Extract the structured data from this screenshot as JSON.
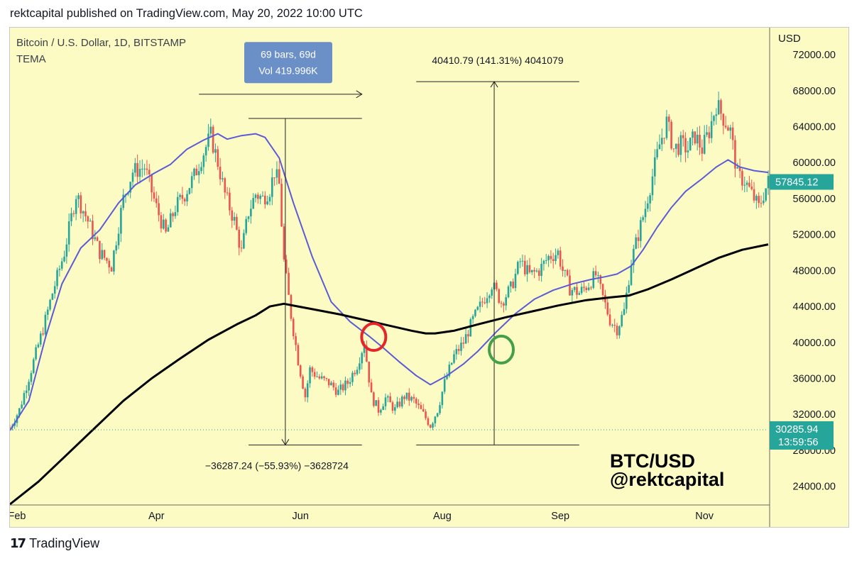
{
  "header": {
    "text": "rektcapital published on TradingView.com, May 20, 2022 10:00 UTC"
  },
  "footer": {
    "brand": "TradingView",
    "logo_glyph": "17"
  },
  "colors": {
    "background": "#fdfbc4",
    "up": "#26a69a",
    "down": "#ef5350",
    "ema_blue": "#5b5bd6",
    "ema_black": "#000000",
    "price_badge": "#26a69a",
    "measure_box": "#6b8fc7",
    "red_circle": "#e5252b",
    "green_circle": "#43a047"
  },
  "chart_data": {
    "type": "candlestick",
    "symbol_label": "Bitcoin / U.S. Dollar, 1D, BITSTAMP",
    "indicator_label": "TEMA",
    "currency_label": "USD",
    "y_ticks": [
      "72000.00",
      "68000.00",
      "64000.00",
      "60000.00",
      "56000.00",
      "52000.00",
      "48000.00",
      "44000.00",
      "40000.00",
      "36000.00",
      "32000.00",
      "28000.00",
      "24000.00"
    ],
    "y_tick_values": [
      72000,
      68000,
      64000,
      60000,
      56000,
      52000,
      48000,
      44000,
      40000,
      36000,
      32000,
      28000,
      24000
    ],
    "x_ticks": [
      "Feb",
      "Apr",
      "Jun",
      "Aug",
      "Sep",
      "Nov"
    ],
    "x_tick_days": [
      3,
      62,
      123,
      183,
      233,
      294
    ],
    "x_range_days": [
      0,
      321
    ],
    "y_range": [
      22000,
      75000
    ],
    "last_price": {
      "label": "57845.12",
      "value": 57845.12
    },
    "marker_price": {
      "label": "30285.94",
      "value": 30285.94,
      "countdown": "13:59:56"
    },
    "price_anchors": [
      {
        "day": 0,
        "price": 30500
      },
      {
        "day": 4,
        "price": 32500
      },
      {
        "day": 9,
        "price": 37000
      },
      {
        "day": 14,
        "price": 41500
      },
      {
        "day": 18,
        "price": 45500
      },
      {
        "day": 23,
        "price": 50000
      },
      {
        "day": 28,
        "price": 56500
      },
      {
        "day": 33,
        "price": 53500
      },
      {
        "day": 38,
        "price": 50000
      },
      {
        "day": 43,
        "price": 48500
      },
      {
        "day": 48,
        "price": 56000
      },
      {
        "day": 52,
        "price": 59000
      },
      {
        "day": 57,
        "price": 59500
      },
      {
        "day": 62,
        "price": 55000
      },
      {
        "day": 66,
        "price": 52000
      },
      {
        "day": 70,
        "price": 55000
      },
      {
        "day": 74,
        "price": 56500
      },
      {
        "day": 78,
        "price": 58500
      },
      {
        "day": 81,
        "price": 60500
      },
      {
        "day": 85,
        "price": 63000
      },
      {
        "day": 88,
        "price": 60000
      },
      {
        "day": 91,
        "price": 56500
      },
      {
        "day": 95,
        "price": 53500
      },
      {
        "day": 98,
        "price": 50000
      },
      {
        "day": 101,
        "price": 54500
      },
      {
        "day": 104,
        "price": 56500
      },
      {
        "day": 107,
        "price": 56000
      },
      {
        "day": 110,
        "price": 57000
      },
      {
        "day": 112,
        "price": 59000
      },
      {
        "day": 114,
        "price": 57500
      },
      {
        "day": 116,
        "price": 49000
      },
      {
        "day": 119,
        "price": 43000
      },
      {
        "day": 122,
        "price": 38000
      },
      {
        "day": 125,
        "price": 34000
      },
      {
        "day": 127,
        "price": 37000
      },
      {
        "day": 131,
        "price": 36000
      },
      {
        "day": 135,
        "price": 35500
      },
      {
        "day": 139,
        "price": 34500
      },
      {
        "day": 143,
        "price": 35500
      },
      {
        "day": 147,
        "price": 37500
      },
      {
        "day": 150,
        "price": 40000
      },
      {
        "day": 153,
        "price": 34000
      },
      {
        "day": 156,
        "price": 32500
      },
      {
        "day": 159,
        "price": 33800
      },
      {
        "day": 163,
        "price": 32500
      },
      {
        "day": 167,
        "price": 34000
      },
      {
        "day": 171,
        "price": 33500
      },
      {
        "day": 175,
        "price": 32000
      },
      {
        "day": 178,
        "price": 30800
      },
      {
        "day": 181,
        "price": 32500
      },
      {
        "day": 184,
        "price": 35500
      },
      {
        "day": 188,
        "price": 38500
      },
      {
        "day": 192,
        "price": 40000
      },
      {
        "day": 196,
        "price": 42500
      },
      {
        "day": 200,
        "price": 44500
      },
      {
        "day": 204,
        "price": 46500
      },
      {
        "day": 208,
        "price": 44500
      },
      {
        "day": 212,
        "price": 46000
      },
      {
        "day": 216,
        "price": 49000
      },
      {
        "day": 220,
        "price": 47500
      },
      {
        "day": 224,
        "price": 48000
      },
      {
        "day": 228,
        "price": 49500
      },
      {
        "day": 232,
        "price": 50000
      },
      {
        "day": 234,
        "price": 48000
      },
      {
        "day": 237,
        "price": 46000
      },
      {
        "day": 241,
        "price": 45500
      },
      {
        "day": 245,
        "price": 46500
      },
      {
        "day": 248,
        "price": 47500
      },
      {
        "day": 251,
        "price": 45000
      },
      {
        "day": 254,
        "price": 42500
      },
      {
        "day": 257,
        "price": 41500
      },
      {
        "day": 260,
        "price": 43500
      },
      {
        "day": 263,
        "price": 49000
      },
      {
        "day": 266,
        "price": 52000
      },
      {
        "day": 269,
        "price": 55000
      },
      {
        "day": 272,
        "price": 58500
      },
      {
        "day": 275,
        "price": 62000
      },
      {
        "day": 278,
        "price": 64500
      },
      {
        "day": 281,
        "price": 61500
      },
      {
        "day": 284,
        "price": 62000
      },
      {
        "day": 287,
        "price": 61500
      },
      {
        "day": 290,
        "price": 63000
      },
      {
        "day": 293,
        "price": 61500
      },
      {
        "day": 296,
        "price": 63500
      },
      {
        "day": 299,
        "price": 66500
      },
      {
        "day": 302,
        "price": 65000
      },
      {
        "day": 305,
        "price": 63500
      },
      {
        "day": 308,
        "price": 58500
      },
      {
        "day": 311,
        "price": 58000
      },
      {
        "day": 314,
        "price": 56500
      },
      {
        "day": 317,
        "price": 55000
      },
      {
        "day": 319,
        "price": 56500
      },
      {
        "day": 321,
        "price": 57845
      }
    ],
    "series": [
      {
        "name": "TEMA (blue)",
        "color": "#5b5bd6",
        "points": [
          [
            0,
            30200
          ],
          [
            8,
            33500
          ],
          [
            15,
            40500
          ],
          [
            22,
            46500
          ],
          [
            30,
            50500
          ],
          [
            38,
            52500
          ],
          [
            46,
            55500
          ],
          [
            53,
            57500
          ],
          [
            61,
            58800
          ],
          [
            68,
            59800
          ],
          [
            75,
            61500
          ],
          [
            82,
            62500
          ],
          [
            88,
            63200
          ],
          [
            92,
            62600
          ],
          [
            98,
            63000
          ],
          [
            104,
            63200
          ],
          [
            108,
            62800
          ],
          [
            114,
            60500
          ],
          [
            120,
            55500
          ],
          [
            128,
            49500
          ],
          [
            136,
            44500
          ],
          [
            144,
            42300
          ],
          [
            152,
            40700
          ],
          [
            158,
            39400
          ],
          [
            165,
            37800
          ],
          [
            172,
            36300
          ],
          [
            178,
            35300
          ],
          [
            185,
            36300
          ],
          [
            192,
            37600
          ],
          [
            198,
            39000
          ],
          [
            206,
            41200
          ],
          [
            214,
            43200
          ],
          [
            222,
            44800
          ],
          [
            230,
            45800
          ],
          [
            238,
            46500
          ],
          [
            246,
            47000
          ],
          [
            252,
            47300
          ],
          [
            257,
            47600
          ],
          [
            263,
            48500
          ],
          [
            268,
            50300
          ],
          [
            274,
            52800
          ],
          [
            280,
            55000
          ],
          [
            286,
            56800
          ],
          [
            293,
            58200
          ],
          [
            299,
            59500
          ],
          [
            304,
            60300
          ],
          [
            309,
            59500
          ],
          [
            315,
            59100
          ],
          [
            321,
            58900
          ]
        ]
      },
      {
        "name": "EMA (black)",
        "color": "#000000",
        "points": [
          [
            0,
            22000
          ],
          [
            12,
            24500
          ],
          [
            24,
            27500
          ],
          [
            36,
            30500
          ],
          [
            48,
            33500
          ],
          [
            60,
            36000
          ],
          [
            72,
            38200
          ],
          [
            84,
            40300
          ],
          [
            96,
            42000
          ],
          [
            104,
            43000
          ],
          [
            110,
            44000
          ],
          [
            116,
            44300
          ],
          [
            122,
            44000
          ],
          [
            130,
            43600
          ],
          [
            140,
            43100
          ],
          [
            150,
            42500
          ],
          [
            160,
            41900
          ],
          [
            170,
            41300
          ],
          [
            176,
            41000
          ],
          [
            180,
            41000
          ],
          [
            188,
            41300
          ],
          [
            198,
            42000
          ],
          [
            210,
            42800
          ],
          [
            222,
            43500
          ],
          [
            232,
            44100
          ],
          [
            244,
            44700
          ],
          [
            254,
            45000
          ],
          [
            262,
            45200
          ],
          [
            270,
            45900
          ],
          [
            280,
            47000
          ],
          [
            290,
            48200
          ],
          [
            300,
            49400
          ],
          [
            310,
            50300
          ],
          [
            321,
            50900
          ]
        ]
      }
    ],
    "annotations": {
      "range_box": {
        "line1": "69 bars, 69d",
        "line2": "Vol 419.996K",
        "from_day": 80,
        "to_day": 149
      },
      "drop_measure": {
        "label": "−36287.24 (−55.93%) −3628724",
        "high": 64900,
        "low": 28600,
        "from_day": 101,
        "to_day": 149
      },
      "rise_measure": {
        "label": "40410.79 (141.31%) 4041079",
        "low": 28600,
        "high": 69000,
        "from_day": 172,
        "to_day": 241
      },
      "red_circle": {
        "day": 154,
        "price": 40600
      },
      "green_circle": {
        "day": 208,
        "price": 39200
      },
      "watermark_line1": "BTC/USD",
      "watermark_line2": "@rektcapital"
    }
  }
}
